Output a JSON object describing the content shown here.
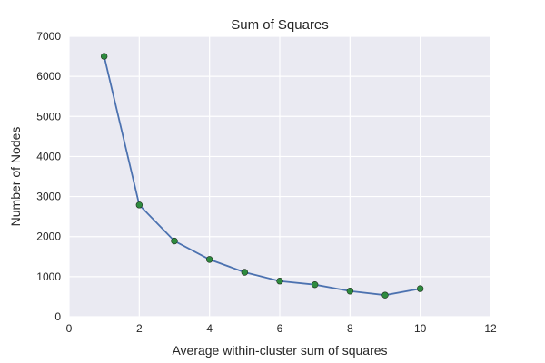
{
  "chart_data": {
    "type": "line",
    "title": "Sum of Squares",
    "xlabel": "Average within-cluster sum of squares",
    "ylabel": "Number of Nodes",
    "xlim": [
      0,
      12
    ],
    "ylim": [
      0,
      7000
    ],
    "x_ticks": [
      "0",
      "2",
      "4",
      "6",
      "8",
      "10",
      "12"
    ],
    "y_ticks": [
      "0",
      "1000",
      "2000",
      "3000",
      "4000",
      "5000",
      "6000",
      "7000"
    ],
    "grid": true,
    "series": [
      {
        "x": [
          1,
          2,
          3,
          4,
          5,
          6,
          7,
          8,
          9,
          10
        ],
        "y": [
          6500,
          2790,
          1890,
          1430,
          1110,
          890,
          800,
          640,
          540,
          700
        ],
        "line_color": "#4c72b0",
        "marker_color": "#2e8b3e"
      }
    ],
    "background_color": "#eaeaf2",
    "grid_color": "#ffffff"
  }
}
